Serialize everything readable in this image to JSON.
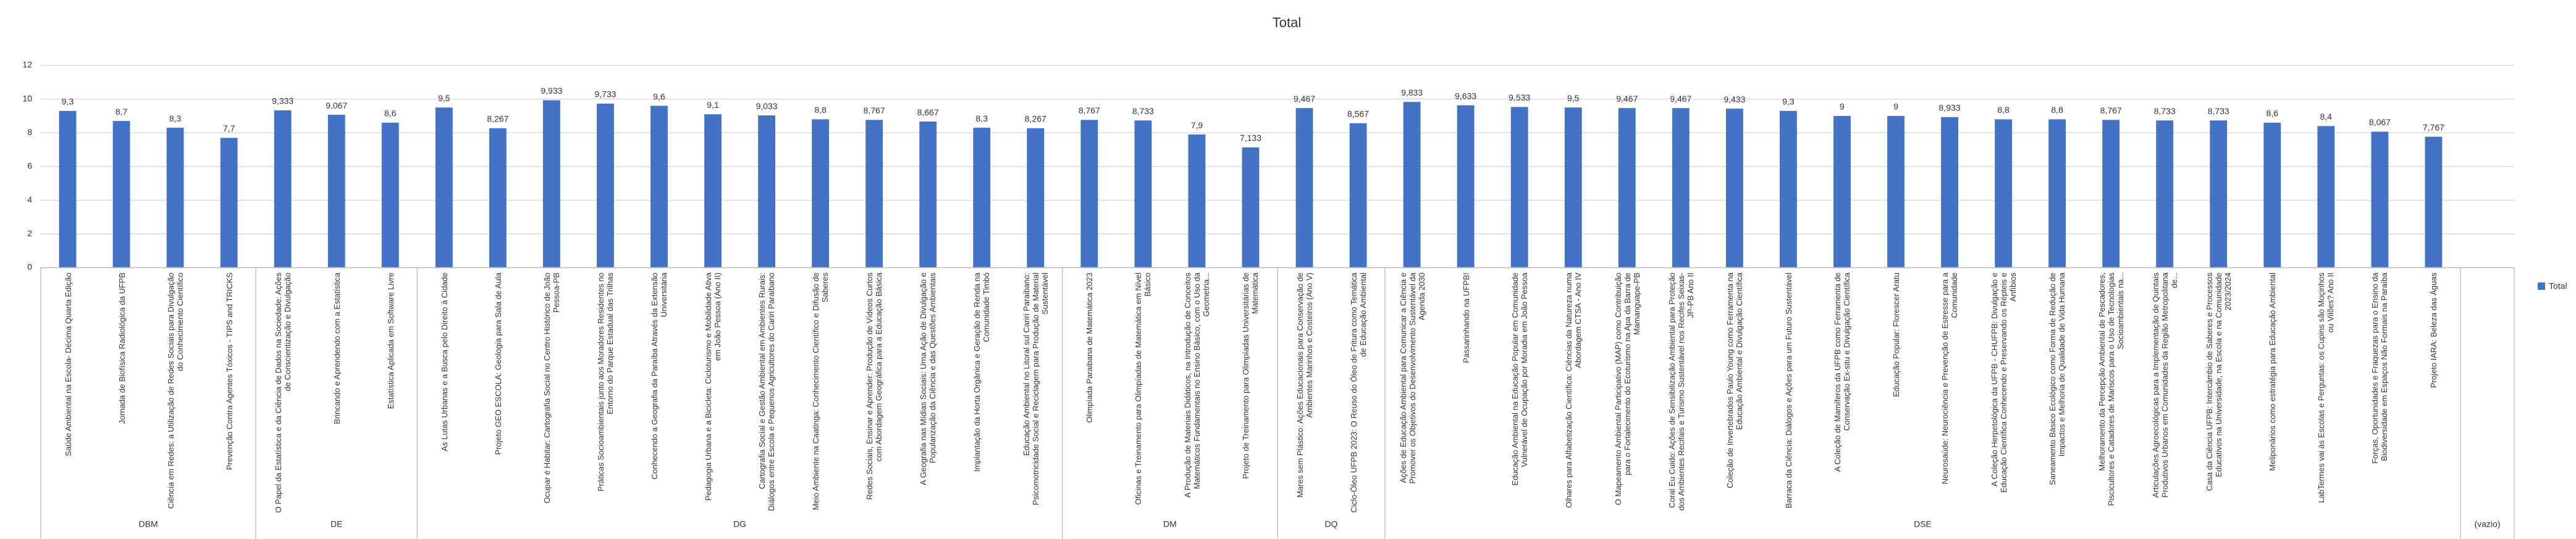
{
  "chart_data": {
    "type": "bar",
    "title": "Total",
    "groups": [
      {
        "label": "DBM",
        "categories": [
          "Saúde Ambiental na Escola- Décima Quarta Edição",
          "Jornada de Biofísica Radiológica da UFPB",
          "Ciência em Redes: a Utilização de Redes Sociais para Divulgação do Conhecimento Científico",
          "Prevenção Contra Agentes Tóxicos - TIPS and TRICKS"
        ]
      },
      {
        "label": "DE",
        "categories": [
          "O Papel da Estatística e da Ciência de Dados na Sociedade: Ações de Conscientização e Divulgação",
          "Brincando e Aprendendo com a Estatística",
          "Estatística Aplicada em Software Livre"
        ]
      },
      {
        "label": "DG",
        "categories": [
          "As Lutas Urbanas e a Busca pelo Direito à Cidade",
          "Projeto GEO ESCOLA: Geologia para Sala de Aula",
          "Ocupar é Habitar: Cartografia Social no Centro Histórico de João Pessoa-PB",
          "Práticas Socioambientais junto aos Moradores Residentes no Entorno do Parque Estadual das Trilhas",
          "Conhecendo a Geografia da Paraíba Através da Extensão Universitária",
          "Pedagogia Urbana e a Bicicleta: Cicloturismo e Mobilidade Ativa em João Pessoa (Ano II)",
          "Cartografia Social e Gestão Ambiental em Ambientes Rurais: Diálogos entre Escola e Pequenos Agricultores do Cariri Paraibano",
          "Meio Ambiente na Caatinga: Conhecimento Científico e Difusão de Saberes",
          "Redes Sociais, Ensinar e Aprender: Produção de Vídeos Curtos com Abordagem Geográfica para a Educação Básica",
          "A Geografia nas Mídias Sociais: Uma Ação de Divulgação e Popularização da Ciência e das Questões Ambientais",
          "Implantação da Horta Orgânica e Geração de Renda na Comunidade Timbó",
          "Educação Ambiental no Litoral sul Cariri Paraibano: Psicomotricidade Social e Reciclagem para Produção de Material Sustentável"
        ]
      },
      {
        "label": "DM",
        "categories": [
          "Olimpíada Paraibana de Matemática 2023",
          "Oficinas e Treinamento para Olimpíadas de Matemática em Nível Básico",
          "A Produção de Materiais Didáticos, na Introdução de Conceitos Matemáticos Fundamentais no Ensino Básico, com o Uso da Geometria...",
          "Projeto de Treinamento para Olimpíadas Universitárias de Matemática"
        ]
      },
      {
        "label": "DQ",
        "categories": [
          "Mares sem Plástico: Ações Educacionais para Conservação de Ambientes Marinhos e Costeiros (Ano V)",
          "Ciclo-Óleo UFPB 2023: O Reuso do Óleo de Fritura como Temática de Educação Ambiental"
        ]
      },
      {
        "label": "DSE",
        "categories": [
          "Ações de Educação Ambiental para Comunicar a Ciência e Promover os Objetivos do Desenvolvimento Sustentável da Agenda 2030",
          "Passarinhando na UFPB!",
          "Educação Ambiental na Educação Popular em Comunidade Vulnerável de Ocupação por Moradia em João Pessoa",
          "Olhares para Alfabetização Científica: Ciências da Natureza numa Abordagem CTSA - Ano IV",
          "O Mapeamento Ambiental Participativo (MAP) como Contribuição para o Fortalecimento do Ecoturismo na Apa da Barra de Mamanguape-PB",
          "Coral Eu Cuido: Ações de Sensibilização Ambiental para Proteção dos Ambientes Recifais e Turismo Sustentável nos Recifes Seixas-JP-PB Ano II",
          "Coleção de Invertebrados Paulo Young como Ferramenta na Educação Ambiental e Divulgação Científica",
          "Barraca da Ciência: Diálogos e Ações para um Futuro Sustentável",
          "A Coleção de Mamíferos da UFPB como Ferramenta de Conservação Ex-situ e Divulgação Científica",
          "Educação Popular: Florescer Aratu",
          "Neurosaúde: Neurociência e Prevenção de Estresse para a Comunidade",
          "A Coleção Herpetológica da UFPB - CHUFPB: Divulgação e Educação Científica Conhecendo e Preservando os Répteis e Anfíbios",
          "Saneamento Básico Ecológico como Forma de Redução de Impactos e Melhoria de Qualidade de Vida Humana",
          "Melhoramento da Percepção Ambiental de Pescadores, Piscicultores e Catadores de Mariscos para o Uso de Tecnologias Socioambientais na...",
          "Articulações Agroecológicas para a Implementação de Quintais Produtivos Urbanos em Comunidades da Região Metropolitana de...",
          "Casa da Ciência UFPB: Intercâmbio de Saberes e Processos Educativos na Universidade, na Escola e na Comunidade 2023/2024",
          "Meliponários como estratégia para Educação Ambiental",
          "LabTermes vai às Escolas e Perguntas: os Cupins são Moçinhos ou Vilões? Ano II",
          "Forças, Oportunidades e Fraquezas para o Ensino da Biodiversidade em Espaços Não Formais na Paraíba",
          "Projeto IARA: Beleza das Águas"
        ]
      },
      {
        "label": "(vazio)",
        "categories": [
          null
        ]
      }
    ],
    "series": [
      {
        "name": "Total",
        "color": "#4472c4",
        "values": [
          9.3,
          8.7,
          8.3,
          7.7,
          9.333,
          9.067,
          8.6,
          9.5,
          8.267,
          9.933,
          9.733,
          9.6,
          9.1,
          9.033,
          8.8,
          8.767,
          8.667,
          8.3,
          8.267,
          8.767,
          8.733,
          7.9,
          7.133,
          9.467,
          8.567,
          9.833,
          9.633,
          9.533,
          9.5,
          9.467,
          9.467,
          9.433,
          9.3,
          9,
          9,
          8.933,
          8.8,
          8.8,
          8.767,
          8.733,
          8.733,
          8.6,
          8.4,
          8.067,
          7.767,
          null
        ],
        "value_labels": [
          "9,3",
          "8,7",
          "8,3",
          "7,7",
          "9,333",
          "9,067",
          "8,6",
          "9,5",
          "8,267",
          "9,933",
          "9,733",
          "9,6",
          "9,1",
          "9,033",
          "8,8",
          "8,767",
          "8,667",
          "8,3",
          "8,267",
          "8,767",
          "8,733",
          "7,9",
          "7,133",
          "9,467",
          "8,567",
          "9,833",
          "9,633",
          "9,533",
          "9,5",
          "9,467",
          "9,467",
          "9,433",
          "9,3",
          "9",
          "9",
          "8,933",
          "8,8",
          "8,8",
          "8,767",
          "8,733",
          "8,733",
          "8,6",
          "8,4",
          "8,067",
          "7,767",
          null
        ]
      }
    ],
    "ylim": [
      0,
      12
    ],
    "yticks": [
      0,
      2,
      4,
      6,
      8,
      10,
      12
    ],
    "grid": true,
    "legend": "right"
  }
}
